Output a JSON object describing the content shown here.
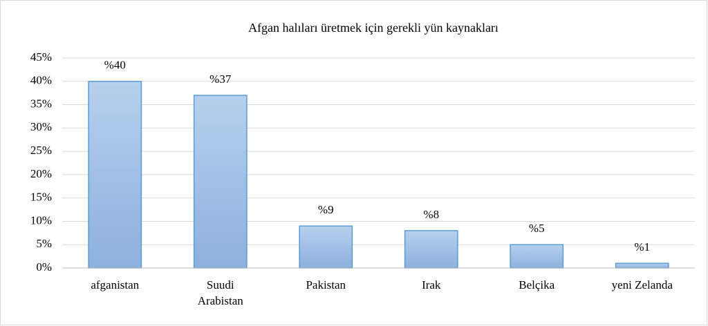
{
  "chart_data": {
    "type": "bar",
    "title": "Afgan halıları üretmek için gerekli yün kaynakları",
    "categories": [
      "afganistan",
      "Suudi Arabistan",
      "Pakistan",
      "Irak",
      "Belçika",
      "yeni Zelanda"
    ],
    "values": [
      40,
      37,
      9,
      8,
      5,
      1
    ],
    "value_labels": [
      "%40",
      "%37",
      "%9",
      "%8",
      "%5",
      "%1"
    ],
    "color": "#9dbfe6",
    "ylim": [
      0,
      45
    ],
    "yticks": [
      {
        "value": 0,
        "label": "0%"
      },
      {
        "value": 5,
        "label": "5%"
      },
      {
        "value": 10,
        "label": "10%"
      },
      {
        "value": 15,
        "label": "15%"
      },
      {
        "value": 20,
        "label": "20%"
      },
      {
        "value": 25,
        "label": "25%"
      },
      {
        "value": 30,
        "label": "30%"
      },
      {
        "value": 35,
        "label": "35%"
      },
      {
        "value": 40,
        "label": "40%"
      },
      {
        "value": 45,
        "label": "45%"
      }
    ],
    "grid": true
  }
}
